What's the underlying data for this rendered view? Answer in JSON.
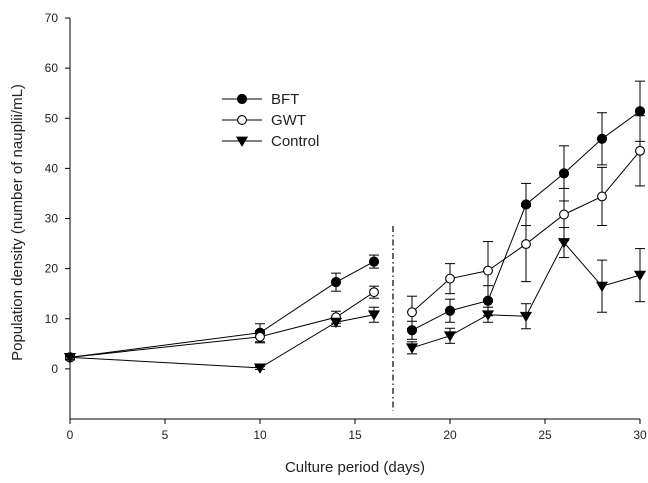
{
  "chart_data": {
    "type": "line",
    "title": "",
    "xlabel": "Culture period (days)",
    "ylabel": "Population density (number of nauplii/mL)",
    "xlim": [
      0,
      30
    ],
    "ylim": [
      -10,
      70
    ],
    "x_ticks": [
      0,
      5,
      10,
      15,
      20,
      25,
      30
    ],
    "y_ticks": [
      0,
      10,
      20,
      30,
      40,
      50,
      60,
      70
    ],
    "grid": false,
    "legend_position": "upper-left",
    "divider_x": 17,
    "series": [
      {
        "name": "BFT",
        "marker": "filled-circle",
        "color": "#000000",
        "segments": [
          {
            "x": [
              0,
              10,
              14,
              16
            ],
            "y": [
              2.3,
              7.2,
              17.3,
              21.4
            ],
            "err": [
              0.5,
              1.8,
              1.8,
              1.3
            ]
          },
          {
            "x": [
              18,
              20,
              22,
              24,
              26,
              28,
              30
            ],
            "y": [
              7.7,
              11.6,
              13.6,
              32.8,
              39.0,
              45.9,
              51.4
            ],
            "err": [
              1.8,
              2.3,
              3.0,
              4.2,
              5.5,
              5.2,
              6.0
            ]
          }
        ]
      },
      {
        "name": "GWT",
        "marker": "open-circle",
        "color": "#000000",
        "segments": [
          {
            "x": [
              0,
              10,
              14,
              16
            ],
            "y": [
              2.3,
              6.4,
              10.3,
              15.3
            ],
            "err": [
              0.5,
              1.2,
              1.2,
              1.2
            ]
          },
          {
            "x": [
              18,
              20,
              22,
              24,
              26,
              28,
              30
            ],
            "y": [
              11.3,
              18.0,
              19.6,
              24.9,
              30.8,
              34.4,
              43.5
            ],
            "err": [
              3.2,
              3.0,
              5.8,
              7.5,
              5.2,
              5.8,
              7.0
            ]
          }
        ]
      },
      {
        "name": "Control",
        "marker": "filled-triangle-down",
        "color": "#000000",
        "segments": [
          {
            "x": [
              0,
              10,
              14,
              16
            ],
            "y": [
              2.3,
              0.2,
              9.3,
              10.8
            ],
            "err": [
              0.4,
              0.3,
              0.8,
              1.5
            ]
          },
          {
            "x": [
              18,
              20,
              22,
              24,
              26,
              28,
              30
            ],
            "y": [
              4.2,
              6.6,
              10.8,
              10.5,
              25.2,
              16.5,
              18.7
            ],
            "err": [
              1.2,
              1.5,
              1.5,
              2.5,
              3.0,
              5.2,
              5.3
            ]
          }
        ]
      }
    ]
  }
}
